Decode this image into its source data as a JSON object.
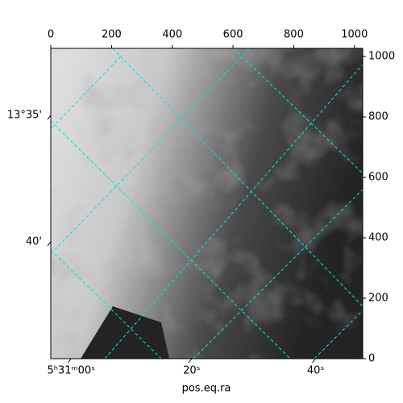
{
  "chart_data": {
    "type": "image",
    "xlabel": "pos.eq.ra",
    "xlim": [
      0,
      1027
    ],
    "ylim": [
      0,
      1027
    ],
    "xticks": [
      0,
      200,
      400,
      600,
      800,
      1000
    ],
    "yticks": [
      0,
      200,
      400,
      600,
      800,
      1000
    ],
    "ra_ticks": [
      {
        "value": 67,
        "label": "5ʰ31ᵐ00ˢ"
      },
      {
        "value": 464,
        "label": "20ˢ"
      },
      {
        "value": 872,
        "label": "40ˢ"
      }
    ],
    "dec_ticks": [
      {
        "value": 805,
        "label": "13°35'"
      },
      {
        "value": 387,
        "label": "40'"
      }
    ],
    "grid_color": "#00e5e5"
  }
}
